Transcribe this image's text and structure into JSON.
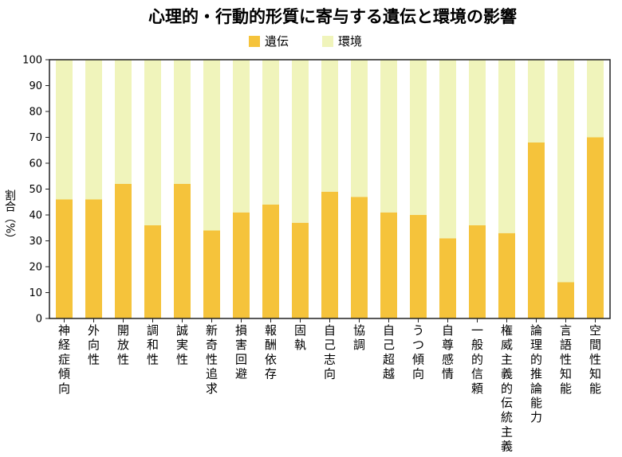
{
  "chart_data": {
    "type": "bar",
    "stacked": true,
    "title": "心理的・行動的形質に寄与する遺伝と環境の影響",
    "ylabel": "割合（%）",
    "xlabel": "",
    "ylim": [
      0,
      100
    ],
    "yticks": [
      0,
      10,
      20,
      30,
      40,
      50,
      60,
      70,
      80,
      90,
      100
    ],
    "legend_position": "top-center",
    "grid": false,
    "categories": [
      "神経症傾向",
      "外向性",
      "開放性",
      "調和性",
      "誠実性",
      "新奇性追求",
      "損害回避",
      "報酬依存",
      "固執",
      "自己志向",
      "協調",
      "自己超越",
      "うつ傾向",
      "自尊感情",
      "一般的信頼",
      "権威主義的伝統主義",
      "論理的推論能力",
      "言語性知能",
      "空間性知能"
    ],
    "series": [
      {
        "name": "遺伝",
        "color": "#f5c33b",
        "values": [
          46,
          46,
          52,
          36,
          52,
          34,
          41,
          44,
          37,
          49,
          47,
          41,
          40,
          31,
          36,
          33,
          68,
          14,
          70
        ]
      },
      {
        "name": "環境",
        "color": "#f0f4bb",
        "values": [
          54,
          54,
          48,
          64,
          48,
          66,
          59,
          56,
          63,
          51,
          53,
          59,
          60,
          69,
          64,
          67,
          32,
          86,
          30
        ]
      }
    ]
  }
}
